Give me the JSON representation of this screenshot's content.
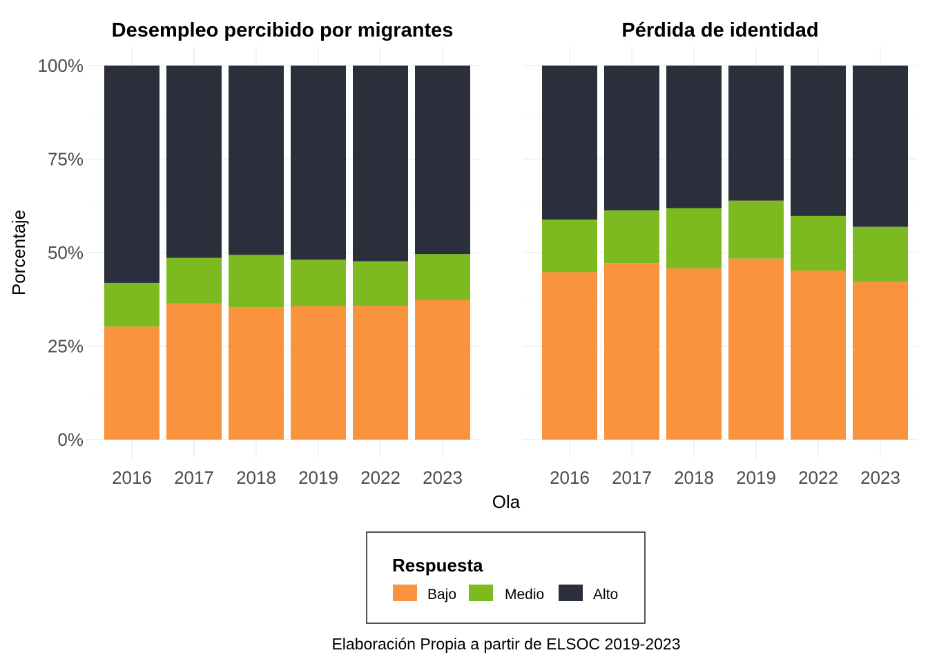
{
  "chart_data": {
    "type": "bar",
    "stacked": true,
    "normalized": true,
    "xlabel": "Ola",
    "ylabel": "Porcentaje",
    "ylim": [
      0,
      1
    ],
    "yticks": [
      0,
      0.25,
      0.5,
      0.75,
      1
    ],
    "ytick_labels": [
      "0%",
      "25%",
      "50%",
      "75%",
      "100%"
    ],
    "categories": [
      "2016",
      "2017",
      "2018",
      "2019",
      "2022",
      "2023"
    ],
    "grid": true,
    "legend": {
      "title": "Respuesta",
      "position": "bottom",
      "entries": [
        "Bajo",
        "Medio",
        "Alto"
      ]
    },
    "colors": {
      "Bajo": "#F9933D",
      "Medio": "#7CBA1F",
      "Alto": "#2B2F3B"
    },
    "caption": "Elaboración Propia a partir de ELSOC 2019-2023",
    "panels": [
      {
        "title": "Desempleo percibido por migrantes",
        "series": [
          {
            "name": "Bajo",
            "values": [
              0.302,
              0.364,
              0.354,
              0.357,
              0.358,
              0.373
            ]
          },
          {
            "name": "Medio",
            "values": [
              0.117,
              0.122,
              0.14,
              0.124,
              0.119,
              0.123
            ]
          },
          {
            "name": "Alto",
            "values": [
              0.581,
              0.514,
              0.506,
              0.519,
              0.523,
              0.504
            ]
          }
        ]
      },
      {
        "title": "Pérdida de identidad",
        "series": [
          {
            "name": "Bajo",
            "values": [
              0.448,
              0.472,
              0.458,
              0.484,
              0.452,
              0.422
            ]
          },
          {
            "name": "Medio",
            "values": [
              0.14,
              0.141,
              0.161,
              0.155,
              0.146,
              0.147
            ]
          },
          {
            "name": "Alto",
            "values": [
              0.412,
              0.387,
              0.381,
              0.361,
              0.402,
              0.431
            ]
          }
        ]
      }
    ]
  }
}
